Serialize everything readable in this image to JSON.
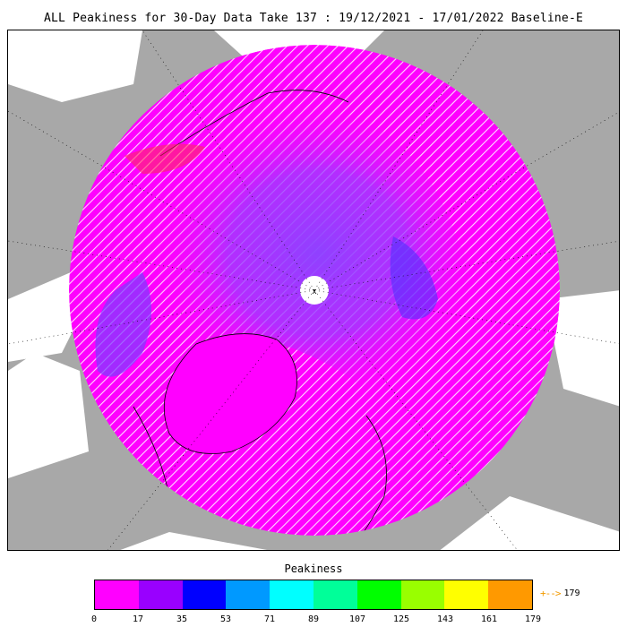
{
  "title": "ALL Peakiness for 30-Day Data Take 137 : 19/12/2021 - 17/01/2022 Baseline-E",
  "map": {
    "projection": "north polar stereographic",
    "land_color": "#a8a8a8",
    "ocean_color": "#ffffff",
    "pole_hole_label": "x"
  },
  "colorbar": {
    "title": "Peakiness",
    "ticks": [
      "0",
      "17",
      "35",
      "53",
      "71",
      "89",
      "107",
      "125",
      "143",
      "161",
      "179"
    ],
    "colors": [
      "#ff00ff",
      "#9900ff",
      "#0000ff",
      "#0099ff",
      "#00ffff",
      "#00ff99",
      "#00ff00",
      "#99ff00",
      "#ffff00",
      "#ff9900"
    ],
    "overflow_arrow": "+-->",
    "overflow_label": "179",
    "overflow_color": "#f29a00"
  }
}
